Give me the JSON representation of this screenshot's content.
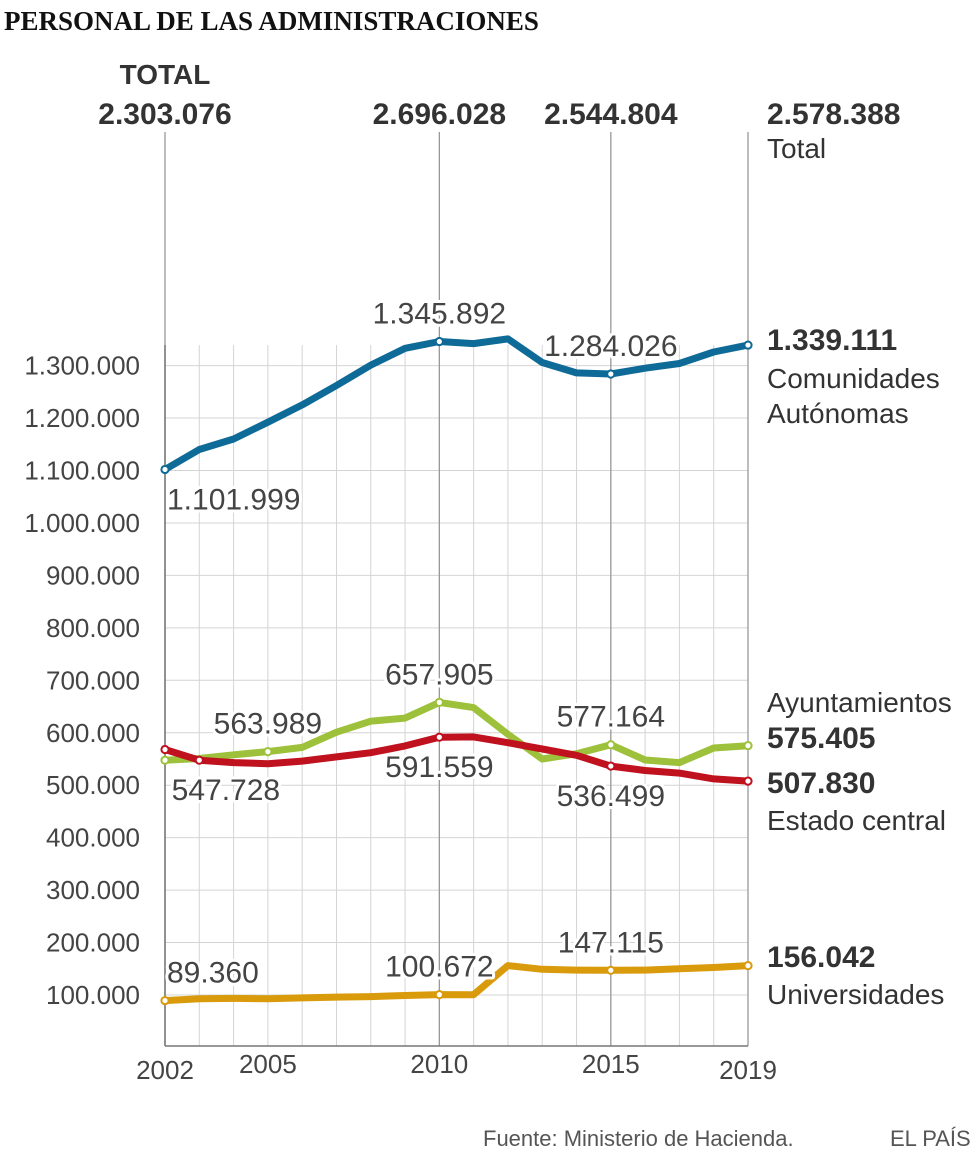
{
  "title": "PERSONAL DE LAS ADMINISTRACIONES",
  "total_label": "TOTAL",
  "totals": [
    {
      "year": 2002,
      "value": "2.303.076"
    },
    {
      "year": 2010,
      "value": "2.696.028"
    },
    {
      "year": 2015,
      "value": "2.544.804"
    },
    {
      "year": 2019,
      "value": "2.578.388",
      "caption": "Total"
    }
  ],
  "source": "Fuente: Ministerio de Hacienda.",
  "brand": "EL PAÍS",
  "chart_data": {
    "type": "line",
    "title": "PERSONAL DE LAS ADMINISTRACIONES",
    "xlabel": "",
    "ylabel": "",
    "x": [
      2002,
      2003,
      2004,
      2005,
      2006,
      2007,
      2008,
      2009,
      2010,
      2011,
      2012,
      2013,
      2014,
      2015,
      2016,
      2017,
      2018,
      2019
    ],
    "xticks": [
      "2002",
      "2005",
      "2010",
      "2015",
      "2019"
    ],
    "ylim": [
      0,
      1300000
    ],
    "yticks": [
      "1.300.000",
      "1.200.000",
      "1.100.000",
      "1.000.000",
      "900.000",
      "800.000",
      "700.000",
      "600.000",
      "500.000",
      "400.000",
      "300.000",
      "200.000",
      "100.000"
    ],
    "grid": true,
    "series": [
      {
        "name": "Comunidades Autónomas",
        "legend": [
          "Comunidades",
          "Autónomas"
        ],
        "final_label": "1.339.111",
        "color": "#0e6a97",
        "values": [
          1101999,
          1140000,
          1160000,
          1192000,
          1225000,
          1262000,
          1301000,
          1333000,
          1345892,
          1342000,
          1351000,
          1306000,
          1286000,
          1284026,
          1295000,
          1304000,
          1326000,
          1339111
        ],
        "labels": [
          {
            "year": 2002,
            "text": "1.101.999",
            "pos": "below"
          },
          {
            "year": 2010,
            "text": "1.345.892",
            "pos": "above"
          },
          {
            "year": 2015,
            "text": "1.284.026",
            "pos": "above"
          }
        ]
      },
      {
        "name": "Ayuntamientos",
        "legend": [
          "Ayuntamientos"
        ],
        "final_label": "575.405",
        "color": "#9dc13a",
        "values": [
          547728,
          551000,
          558000,
          563989,
          572000,
          601000,
          622000,
          628000,
          657905,
          648000,
          597000,
          550000,
          560000,
          577164,
          548000,
          543000,
          571000,
          575405
        ],
        "labels": [
          {
            "year": 2005,
            "text": "563.989",
            "pos": "above"
          },
          {
            "year": 2010,
            "text": "657.905",
            "pos": "above"
          },
          {
            "year": 2015,
            "text": "577.164",
            "pos": "above"
          }
        ]
      },
      {
        "name": "Estado central",
        "legend": [
          "Estado central"
        ],
        "final_label": "507.830",
        "color": "#c0111f",
        "values": [
          568000,
          547728,
          543000,
          541000,
          546000,
          554000,
          562000,
          575000,
          591559,
          592000,
          581000,
          569000,
          557000,
          536499,
          528000,
          523000,
          512000,
          507830
        ],
        "labels": [
          {
            "year": 2003,
            "text": "547.728",
            "pos": "below"
          },
          {
            "year": 2010,
            "text": "591.559",
            "pos": "below"
          },
          {
            "year": 2015,
            "text": "536.499",
            "pos": "below"
          }
        ]
      },
      {
        "name": "Universidades",
        "legend": [
          "Universidades"
        ],
        "final_label": "156.042",
        "color": "#d99a0c",
        "values": [
          89360,
          93000,
          93500,
          93000,
          94500,
          96000,
          97000,
          99000,
          100672,
          100500,
          156000,
          149000,
          147500,
          147115,
          147500,
          150000,
          152500,
          156042
        ],
        "labels": [
          {
            "year": 2002,
            "text": "89.360",
            "pos": "above"
          },
          {
            "year": 2010,
            "text": "100.672",
            "pos": "above"
          },
          {
            "year": 2015,
            "text": "147.115",
            "pos": "above"
          }
        ]
      }
    ]
  }
}
